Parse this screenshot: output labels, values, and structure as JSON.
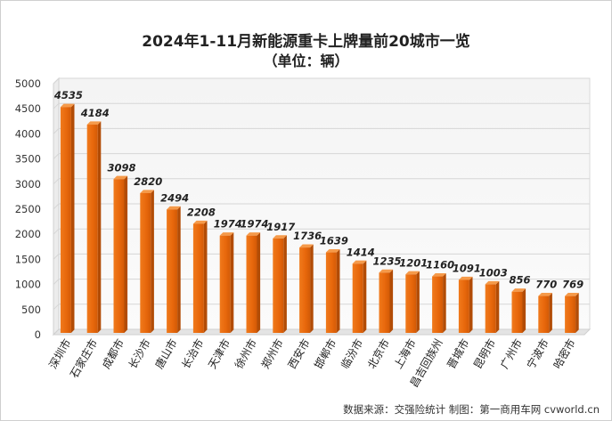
{
  "title": "2024年1-11月新能源重卡上牌量前20城市一览",
  "subtitle": "（单位：辆）",
  "source": "数据来源：交强险统计   制图：第一商用车网 cvworld.cn",
  "chart_data": {
    "type": "bar",
    "title": "2024年1-11月新能源重卡上牌量前20城市一览",
    "subtitle": "（单位：辆）",
    "categories": [
      "深圳市",
      "石家庄市",
      "成都市",
      "长沙市",
      "唐山市",
      "长治市",
      "天津市",
      "徐州市",
      "郑州市",
      "西安市",
      "邯郸市",
      "临汾市",
      "北京市",
      "上海市",
      "昌吉回族州",
      "晋城市",
      "昆明市",
      "广州市",
      "宁波市",
      "哈密市"
    ],
    "values": [
      4535,
      4184,
      3098,
      2820,
      2494,
      2208,
      1974,
      1974,
      1917,
      1736,
      1639,
      1414,
      1235,
      1201,
      1160,
      1091,
      1003,
      856,
      770,
      769
    ],
    "yticks": [
      0,
      500,
      1000,
      1500,
      2000,
      2500,
      3000,
      3500,
      4000,
      4500,
      5000
    ],
    "ylim": [
      0,
      5000
    ],
    "grid": true,
    "legend": "none",
    "bar_color": "#e8680c"
  }
}
